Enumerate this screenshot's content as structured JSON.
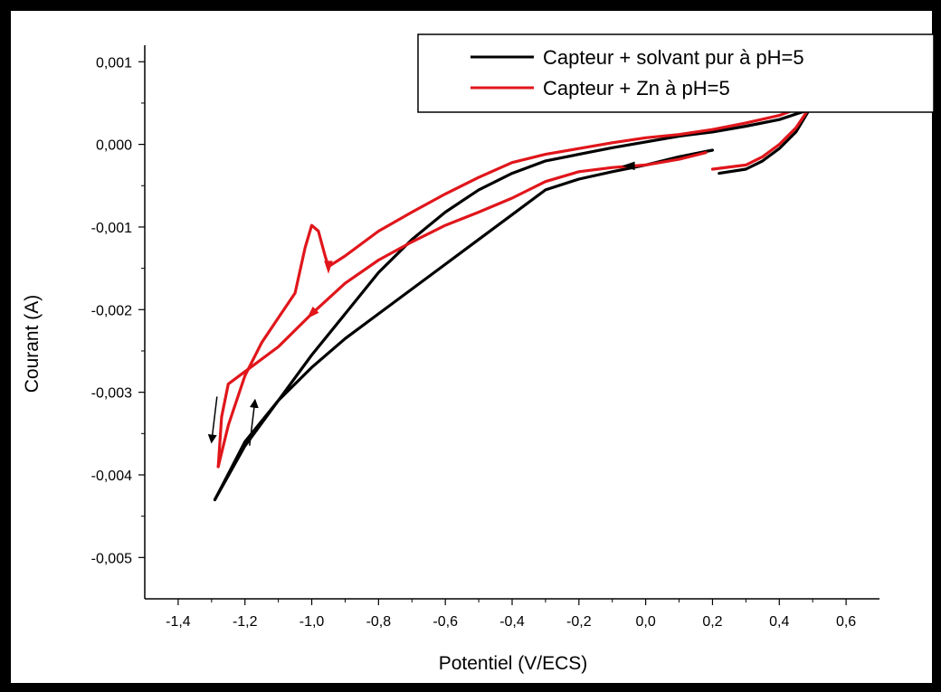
{
  "chart_data": {
    "type": "line",
    "xlabel": "Potentiel (V/ECS)",
    "ylabel": "Courant (A)",
    "xlim": [
      -1.5,
      0.7
    ],
    "ylim": [
      -0.0055,
      0.0012
    ],
    "x_ticks": [
      -1.4,
      -1.2,
      -1.0,
      -0.8,
      -0.6,
      -0.4,
      -0.2,
      0.0,
      0.2,
      0.4,
      0.6
    ],
    "x_tick_labels": [
      "-1,4",
      "-1,2",
      "-1,0",
      "-0,8",
      "-0,6",
      "-0,4",
      "-0,2",
      "0,0",
      "0,2",
      "0,4",
      "0,6"
    ],
    "y_ticks": [
      -0.005,
      -0.004,
      -0.003,
      -0.002,
      -0.001,
      0.0,
      0.001
    ],
    "y_tick_labels": [
      "-0,005",
      "-0,004",
      "-0,003",
      "-0,002",
      "-0,001",
      "0,000",
      "0,001"
    ],
    "grid": false,
    "legend_position": "top-right",
    "series": [
      {
        "name": "Capteur + solvant pur à pH=5",
        "color": "#000000",
        "segments": [
          [
            [
              0.2,
              -7e-05
            ],
            [
              0.1,
              -0.00015
            ],
            [
              0.0,
              -0.00025
            ],
            [
              -0.1,
              -0.00033
            ],
            [
              -0.2,
              -0.00042
            ],
            [
              -0.3,
              -0.00055
            ],
            [
              -0.4,
              -0.00085
            ],
            [
              -0.5,
              -0.00115
            ],
            [
              -0.6,
              -0.00145
            ],
            [
              -0.7,
              -0.00175
            ],
            [
              -0.8,
              -0.00205
            ],
            [
              -0.9,
              -0.00235
            ],
            [
              -1.0,
              -0.0027
            ],
            [
              -1.1,
              -0.0031
            ],
            [
              -1.2,
              -0.0036
            ],
            [
              -1.29,
              -0.0043
            ]
          ],
          [
            [
              -1.29,
              -0.0043
            ],
            [
              -1.2,
              -0.00365
            ],
            [
              -1.1,
              -0.0031
            ],
            [
              -1.0,
              -0.00255
            ],
            [
              -0.9,
              -0.00205
            ],
            [
              -0.8,
              -0.00155
            ],
            [
              -0.7,
              -0.00115
            ],
            [
              -0.6,
              -0.00082
            ],
            [
              -0.5,
              -0.00055
            ],
            [
              -0.4,
              -0.00035
            ],
            [
              -0.3,
              -0.0002
            ],
            [
              -0.2,
              -0.00012
            ],
            [
              -0.1,
              -4e-05
            ],
            [
              0.0,
              3e-05
            ],
            [
              0.1,
              0.0001
            ],
            [
              0.2,
              0.00015
            ],
            [
              0.3,
              0.00022
            ],
            [
              0.4,
              0.0003
            ],
            [
              0.49,
              0.00042
            ]
          ],
          [
            [
              0.49,
              0.00042
            ],
            [
              0.45,
              0.00015
            ],
            [
              0.4,
              -5e-05
            ],
            [
              0.35,
              -0.0002
            ],
            [
              0.3,
              -0.0003
            ],
            [
              0.22,
              -0.00035
            ]
          ]
        ]
      },
      {
        "name": "Capteur + Zn à pH=5",
        "color": "#e0161b",
        "segments": [
          [
            [
              0.18,
              -0.0001
            ],
            [
              0.1,
              -0.00018
            ],
            [
              0.0,
              -0.00025
            ],
            [
              -0.1,
              -0.00028
            ],
            [
              -0.2,
              -0.00033
            ],
            [
              -0.3,
              -0.00045
            ],
            [
              -0.4,
              -0.00065
            ],
            [
              -0.5,
              -0.00082
            ],
            [
              -0.6,
              -0.00098
            ],
            [
              -0.7,
              -0.00118
            ],
            [
              -0.8,
              -0.0014
            ],
            [
              -0.9,
              -0.00168
            ],
            [
              -1.0,
              -0.00205
            ],
            [
              -1.1,
              -0.00245
            ],
            [
              -1.2,
              -0.00275
            ],
            [
              -1.25,
              -0.0029
            ],
            [
              -1.27,
              -0.0033
            ],
            [
              -1.28,
              -0.0039
            ]
          ],
          [
            [
              -1.28,
              -0.0039
            ],
            [
              -1.25,
              -0.0034
            ],
            [
              -1.2,
              -0.0028
            ],
            [
              -1.15,
              -0.0024
            ],
            [
              -1.1,
              -0.0021
            ],
            [
              -1.05,
              -0.0018
            ],
            [
              -1.02,
              -0.00125
            ],
            [
              -1.0,
              -0.00098
            ],
            [
              -0.98,
              -0.00105
            ],
            [
              -0.96,
              -0.00135
            ],
            [
              -0.95,
              -0.00148
            ],
            [
              -0.9,
              -0.00135
            ],
            [
              -0.8,
              -0.00105
            ],
            [
              -0.7,
              -0.00082
            ],
            [
              -0.6,
              -0.0006
            ],
            [
              -0.5,
              -0.0004
            ],
            [
              -0.4,
              -0.00022
            ],
            [
              -0.3,
              -0.00012
            ],
            [
              -0.2,
              -5e-05
            ],
            [
              -0.1,
              2e-05
            ],
            [
              0.0,
              8e-05
            ],
            [
              0.1,
              0.00012
            ],
            [
              0.2,
              0.00018
            ],
            [
              0.3,
              0.00026
            ],
            [
              0.4,
              0.00035
            ],
            [
              0.5,
              0.0005
            ]
          ],
          [
            [
              0.5,
              0.0005
            ],
            [
              0.45,
              0.0002
            ],
            [
              0.4,
              0.0
            ],
            [
              0.35,
              -0.00015
            ],
            [
              0.3,
              -0.00025
            ],
            [
              0.2,
              -0.0003
            ]
          ]
        ]
      }
    ],
    "annotations": [
      {
        "type": "arrow",
        "color": "#e0161b",
        "at": [
          -0.95,
          -0.00148
        ],
        "direction": "down"
      },
      {
        "type": "arrow",
        "color": "#e0161b",
        "at": [
          -1.0,
          -0.00205
        ],
        "direction": "down-left"
      },
      {
        "type": "arrow",
        "color": "#000000",
        "at": [
          -0.05,
          -0.00026
        ],
        "direction": "left"
      },
      {
        "type": "arrow",
        "color": "#000000",
        "at": [
          -1.3,
          -0.0036
        ],
        "direction": "down"
      },
      {
        "type": "arrow",
        "color": "#000000",
        "at": [
          -1.17,
          -0.0031
        ],
        "direction": "up"
      }
    ]
  }
}
